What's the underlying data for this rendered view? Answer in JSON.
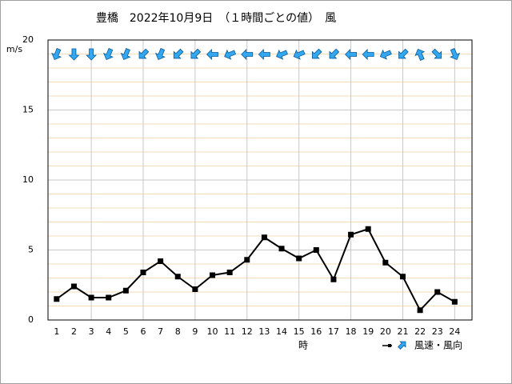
{
  "chart_data": {
    "type": "line",
    "title": "豊橋　2022年10月9日　（１時間ごとの値）　風",
    "y_label": "m/s",
    "x_label": "時",
    "legend_label": "風速・風向",
    "x": [
      1,
      2,
      3,
      4,
      5,
      6,
      7,
      8,
      9,
      10,
      11,
      12,
      13,
      14,
      15,
      16,
      17,
      18,
      19,
      20,
      21,
      22,
      23,
      24
    ],
    "series": [
      {
        "name": "風速",
        "color": "#000000",
        "values": [
          1.5,
          2.4,
          1.6,
          1.6,
          2.1,
          3.4,
          4.2,
          3.1,
          2.2,
          3.2,
          3.4,
          4.3,
          5.9,
          5.1,
          4.4,
          5.0,
          2.9,
          6.1,
          6.5,
          4.1,
          3.1,
          0.7,
          2.0,
          1.3
        ]
      }
    ],
    "wind_arrow_heading_deg": [
      202.5,
      180,
      180,
      202.5,
      202.5,
      225,
      202.5,
      225,
      225,
      270,
      247.5,
      270,
      270,
      247.5,
      247.5,
      225,
      225,
      270,
      270,
      247.5,
      225,
      337.5,
      135,
      157.5
    ],
    "arrow_color": "#33a8f0",
    "xlim": [
      0.5,
      25
    ],
    "xticks": [
      1,
      2,
      3,
      4,
      5,
      6,
      7,
      8,
      9,
      10,
      11,
      12,
      13,
      14,
      15,
      16,
      17,
      18,
      19,
      20,
      21,
      22,
      23,
      24
    ],
    "xgrid": [
      3,
      6,
      9,
      12,
      15,
      18,
      21,
      24
    ],
    "ylim": [
      0,
      20
    ],
    "yticks": [
      0,
      5,
      10,
      15,
      20
    ],
    "yminorticks": [
      1,
      2,
      3,
      4,
      6,
      7,
      8,
      9,
      11,
      12,
      13,
      14,
      16,
      17,
      18,
      19
    ],
    "grid": true
  }
}
